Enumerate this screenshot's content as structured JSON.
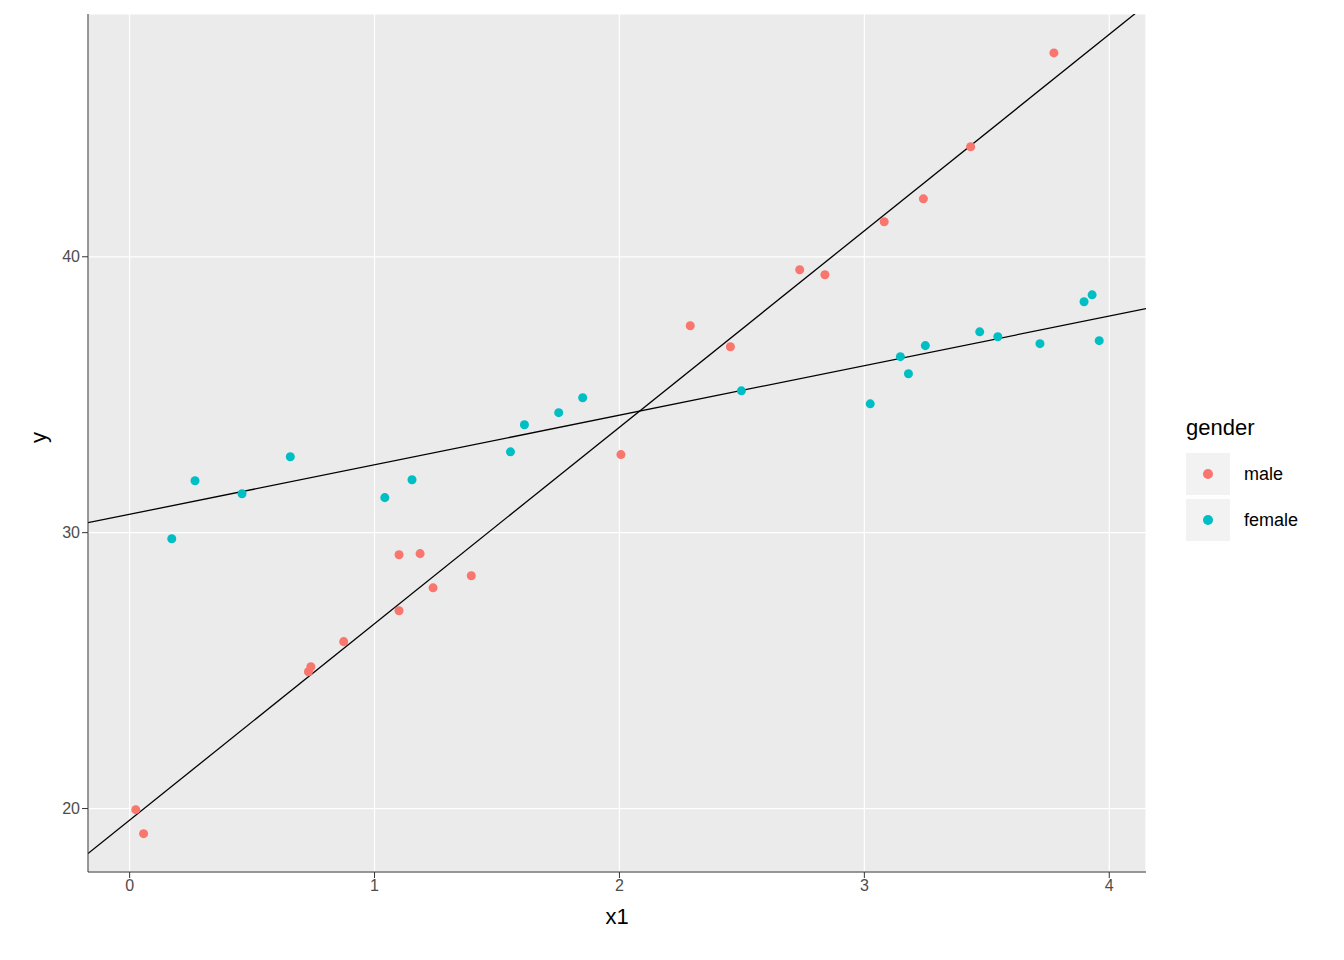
{
  "chart_data": {
    "type": "scatter",
    "x_label": "x1",
    "y_label": "y",
    "legend_title": "gender",
    "legend": "right",
    "grid": true,
    "xlim": [
      -0.17,
      4.15
    ],
    "ylim": [
      17.7,
      48.8
    ],
    "xticks": [
      0,
      1,
      2,
      3,
      4
    ],
    "yticks": [
      20,
      30,
      40
    ],
    "series": [
      {
        "name": "male",
        "color": "#F8766D",
        "marker": "circle",
        "x": [
          0.025,
          0.057,
          0.73,
          0.74,
          0.874,
          1.1,
          1.1,
          1.186,
          1.239,
          1.395,
          2.006,
          2.289,
          2.453,
          2.736,
          2.839,
          3.081,
          3.241,
          3.434,
          3.774
        ],
        "values": [
          19.96,
          19.09,
          24.96,
          25.14,
          26.05,
          29.2,
          27.17,
          29.24,
          28.0,
          28.44,
          32.83,
          37.5,
          36.74,
          39.53,
          39.35,
          41.27,
          42.1,
          43.99,
          47.39
        ]
      },
      {
        "name": "female",
        "color": "#00BFC4",
        "marker": "circle",
        "x": [
          0.172,
          0.267,
          0.459,
          0.656,
          1.042,
          1.153,
          1.555,
          1.612,
          1.752,
          1.85,
          2.498,
          3.024,
          3.147,
          3.18,
          3.249,
          3.471,
          3.545,
          3.717,
          3.897,
          3.93,
          3.959
        ],
        "values": [
          29.78,
          31.88,
          31.41,
          32.75,
          31.27,
          31.92,
          32.93,
          33.91,
          34.35,
          34.89,
          35.14,
          34.67,
          36.38,
          35.76,
          36.78,
          37.28,
          37.1,
          36.85,
          38.37,
          38.62,
          36.96
        ]
      }
    ],
    "fit_lines": [
      {
        "type": "line",
        "color": "#000000",
        "line_style": "solid",
        "x": [
          -0.17,
          4.15
        ],
        "values": [
          18.37,
          49.13
        ]
      },
      {
        "type": "line",
        "color": "#000000",
        "line_style": "solid",
        "x": [
          -0.17,
          4.15
        ],
        "values": [
          30.36,
          38.12
        ]
      }
    ]
  }
}
